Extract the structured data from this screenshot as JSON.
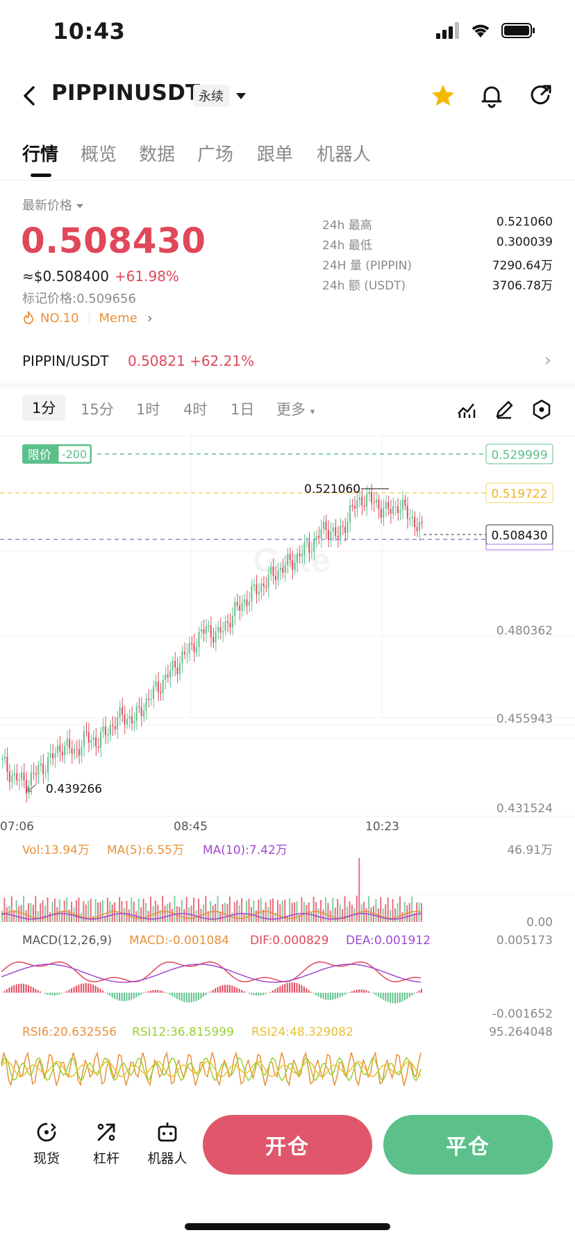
{
  "status_bar": {
    "time": "10:43"
  },
  "nav": {
    "title": "PIPPINUSDT",
    "badge": "永续",
    "icons": [
      "back-icon",
      "star-icon",
      "bell-icon",
      "share-icon"
    ]
  },
  "tabs": [
    "行情",
    "概览",
    "数据",
    "广场",
    "跟单",
    "机器人"
  ],
  "price": {
    "latest_label": "最新价格",
    "last": "0.508430",
    "usd": "≈$0.508400",
    "change": "+61.98%",
    "mark": "标记价格:0.509656",
    "rank": "NO.10",
    "tag": "Meme"
  },
  "stats": [
    {
      "label": "24h  最高",
      "value": "0.521060"
    },
    {
      "label": "24h  最低",
      "value": "0.300039"
    },
    {
      "label": "24H  量 (PIPPIN)",
      "value": "7290.64万"
    },
    {
      "label": "24h  额 (USDT)",
      "value": "3706.78万"
    }
  ],
  "spot": {
    "pair": "PIPPIN/USDT",
    "price": "0.50821  +62.21%"
  },
  "intervals": [
    "1分",
    "15分",
    "1时",
    "4时",
    "1日",
    "更多"
  ],
  "chart_data": {
    "type": "candlestick",
    "price_axis": [
      "0.529999",
      "0.519722",
      "0.508430",
      "0.480362",
      "0.455943",
      "0.431524"
    ],
    "time_axis": [
      "07:06",
      "08:45",
      "10:23"
    ],
    "high_label": "0.521060",
    "low_label": "0.439266",
    "limit_label": "限价",
    "limit_value": "-200",
    "watermark": "Gate",
    "close_series": [
      0.445,
      0.441,
      0.4395,
      0.443,
      0.446,
      0.45,
      0.448,
      0.452,
      0.451,
      0.455,
      0.458,
      0.457,
      0.462,
      0.466,
      0.47,
      0.474,
      0.478,
      0.482,
      0.48,
      0.485,
      0.489,
      0.492,
      0.495,
      0.498,
      0.5,
      0.503,
      0.506,
      0.51,
      0.507,
      0.514,
      0.518,
      0.517,
      0.514,
      0.516,
      0.513,
      0.5084
    ],
    "volume": {
      "vol": "Vol:13.94万",
      "ma5": "MA(5):6.55万",
      "ma10": "MA(10):7.42万",
      "axis_top": "46.91万",
      "axis_bottom": "0.00"
    },
    "macd": {
      "title": "MACD(12,26,9)",
      "macd": "MACD:-0.001084",
      "dif": "DIF:0.000829",
      "dea": "DEA:0.001912",
      "axis_top": "0.005173",
      "axis_bottom": "-0.001652"
    },
    "rsi": {
      "rsi6": "RSI6:20.632556",
      "rsi12": "RSI12:36.815999",
      "rsi24": "RSI24:48.329082",
      "axis_top": "95.264048"
    }
  },
  "bottom_bar": {
    "spot": "现货",
    "leverage": "杠杆",
    "bot": "机器人",
    "open": "开仓",
    "close": "平仓"
  },
  "colors": {
    "up": "#e0475a",
    "down": "#5cc08a",
    "accent": "#f5b800"
  }
}
